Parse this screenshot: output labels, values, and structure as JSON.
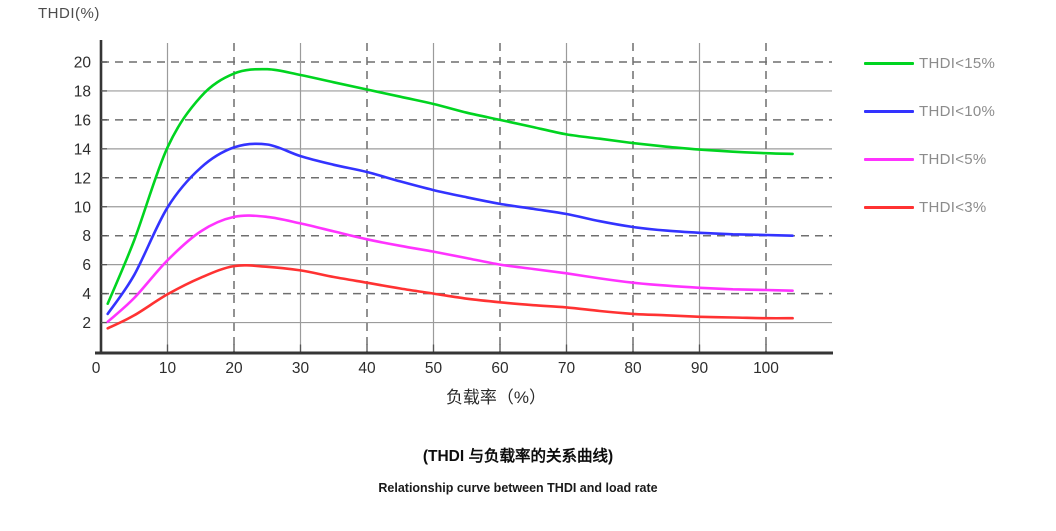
{
  "y_axis_title": "THDI(%)",
  "x_axis_title": "负载率（%）",
  "captions": {
    "zh": "(THDI 与负载率的关系曲线)",
    "en": "Relationship curve between THDI and load rate"
  },
  "colors": {
    "grid_solid": "#9b9b9b",
    "grid_dashed": "#6f6f6f",
    "axis": "#353535",
    "tick_label": "#2d2d2d",
    "legend_text": "#8c8c8c"
  },
  "chart_data": {
    "type": "line",
    "title": "(THDI 与负载率的关系曲线) Relationship curve between THDI and load rate",
    "xlabel": "负载率（%）",
    "ylabel": "THDI(%)",
    "xlim": [
      0,
      105
    ],
    "ylim": [
      0,
      21
    ],
    "xticks": [
      0,
      10,
      20,
      30,
      40,
      50,
      60,
      70,
      80,
      90,
      100
    ],
    "yticks": [
      2,
      4,
      6,
      8,
      10,
      12,
      14,
      16,
      18,
      20
    ],
    "grid": "horizontal solid at 2/6/10/14/18 and dashed at 4/8/12/16/20; vertical solid at 10/30/50/70/90 and dashed at 20/40/60/80/100",
    "legend_position": "right",
    "x": [
      1,
      5,
      10,
      15,
      20,
      25,
      30,
      35,
      40,
      45,
      50,
      55,
      60,
      65,
      70,
      75,
      80,
      85,
      90,
      95,
      100,
      104
    ],
    "series": [
      {
        "name": "THDI<15%",
        "color": "#00d420",
        "values": [
          3.3,
          7.7,
          14.1,
          17.6,
          19.2,
          19.5,
          19.1,
          18.6,
          18.1,
          17.6,
          17.1,
          16.5,
          16.0,
          15.5,
          15.0,
          14.7,
          14.4,
          14.15,
          13.95,
          13.8,
          13.7,
          13.65
        ]
      },
      {
        "name": "THDI<10%",
        "color": "#3333ff",
        "values": [
          2.6,
          5.3,
          9.95,
          12.7,
          14.1,
          14.3,
          13.5,
          12.9,
          12.4,
          11.75,
          11.15,
          10.65,
          10.2,
          9.85,
          9.5,
          9.0,
          8.6,
          8.35,
          8.2,
          8.1,
          8.05,
          8.0
        ]
      },
      {
        "name": "THDI<5%",
        "color": "#ff33ff",
        "values": [
          2.05,
          3.7,
          6.3,
          8.3,
          9.3,
          9.3,
          8.85,
          8.3,
          7.75,
          7.3,
          6.9,
          6.45,
          6.0,
          5.7,
          5.4,
          5.05,
          4.75,
          4.55,
          4.4,
          4.3,
          4.25,
          4.2
        ]
      },
      {
        "name": "THDI<3%",
        "color": "#ff3232",
        "values": [
          1.6,
          2.5,
          3.95,
          5.1,
          5.9,
          5.85,
          5.6,
          5.15,
          4.75,
          4.35,
          4.0,
          3.65,
          3.4,
          3.2,
          3.05,
          2.8,
          2.6,
          2.5,
          2.4,
          2.35,
          2.3,
          2.3
        ]
      }
    ]
  }
}
